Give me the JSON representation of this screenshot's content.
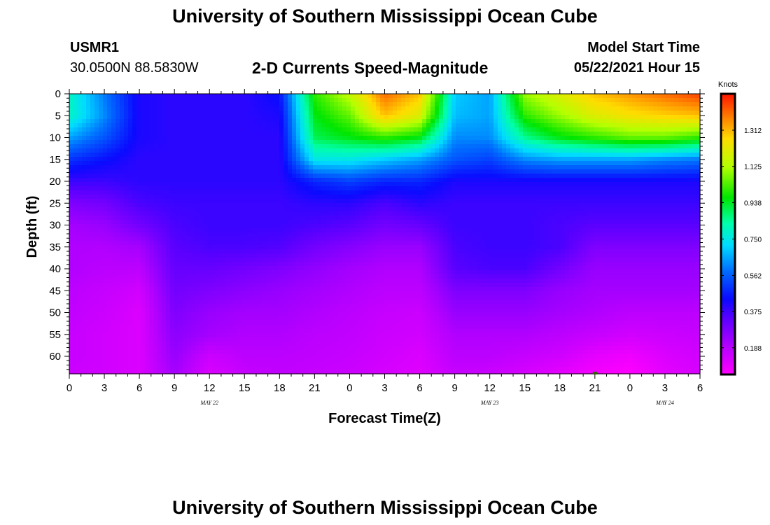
{
  "header": {
    "title": "University of Southern Mississippi Ocean Cube",
    "station_id": "USMR1",
    "station_coords": "30.0500N  88.5830W",
    "plot_title": "2-D Currents Speed-Magnitude",
    "model_start_label": "Model Start Time",
    "model_start_value": "05/22/2021 Hour 15"
  },
  "footer": {
    "title": "University of Southern Mississippi Ocean Cube"
  },
  "chart_data": {
    "type": "heatmap",
    "xlabel": "Forecast Time(Z)",
    "ylabel": "Depth (ft)",
    "x_tick_labels": [
      "0",
      "3",
      "6",
      "9",
      "12",
      "15",
      "18",
      "21",
      "0",
      "3",
      "6",
      "9",
      "12",
      "15",
      "18",
      "21",
      "0",
      "3",
      "6"
    ],
    "x_date_labels": [
      {
        "label": "MAY 22",
        "tick_index": 4
      },
      {
        "label": "MAY 23",
        "tick_index": 12
      },
      {
        "label": "MAY 24",
        "tick_index": 17
      }
    ],
    "y_tick_labels": [
      "0",
      "5",
      "10",
      "15",
      "20",
      "25",
      "30",
      "35",
      "40",
      "45",
      "50",
      "55",
      "60"
    ],
    "y_ticks": [
      0,
      5,
      10,
      15,
      20,
      25,
      30,
      35,
      40,
      45,
      50,
      55,
      60
    ],
    "ylim": [
      0,
      64
    ],
    "x_hours_range": [
      0,
      54
    ],
    "colorbar": {
      "unit_label": "Knots",
      "tick_labels": [
        "0.188",
        "0.375",
        "0.562",
        "0.750",
        "0.938",
        "1.125",
        "1.312"
      ],
      "tick_values": [
        0.188,
        0.375,
        0.562,
        0.75,
        0.938,
        1.125,
        1.312
      ],
      "range": [
        0.05,
        1.5
      ]
    },
    "depths_ft": [
      0,
      5,
      10,
      15,
      20,
      25,
      30,
      35,
      40,
      45,
      50,
      55,
      60,
      64
    ],
    "times_h": [
      0,
      3,
      6,
      9,
      12,
      15,
      18,
      21,
      24,
      27,
      30,
      33,
      36,
      39,
      42,
      45,
      48,
      51,
      54
    ],
    "speed_knots": [
      [
        0.8,
        0.6,
        0.42,
        0.4,
        0.4,
        0.4,
        0.45,
        1.0,
        1.15,
        1.4,
        1.3,
        0.7,
        0.65,
        1.1,
        1.2,
        1.3,
        1.35,
        1.4,
        1.45
      ],
      [
        0.8,
        0.62,
        0.42,
        0.4,
        0.4,
        0.4,
        0.42,
        0.95,
        1.05,
        1.3,
        1.2,
        0.68,
        0.65,
        1.0,
        1.1,
        1.2,
        1.25,
        1.28,
        1.3
      ],
      [
        0.65,
        0.55,
        0.42,
        0.4,
        0.4,
        0.4,
        0.4,
        0.9,
        0.95,
        1.0,
        0.95,
        0.62,
        0.62,
        0.85,
        0.95,
        1.0,
        1.05,
        1.05,
        1.0
      ],
      [
        0.5,
        0.45,
        0.4,
        0.4,
        0.4,
        0.4,
        0.4,
        0.75,
        0.75,
        0.7,
        0.65,
        0.55,
        0.52,
        0.62,
        0.65,
        0.65,
        0.65,
        0.62,
        0.6
      ],
      [
        0.38,
        0.38,
        0.4,
        0.4,
        0.4,
        0.4,
        0.4,
        0.48,
        0.52,
        0.48,
        0.48,
        0.42,
        0.42,
        0.42,
        0.42,
        0.42,
        0.42,
        0.42,
        0.42
      ],
      [
        0.28,
        0.3,
        0.36,
        0.38,
        0.38,
        0.38,
        0.38,
        0.4,
        0.4,
        0.36,
        0.4,
        0.38,
        0.38,
        0.38,
        0.38,
        0.38,
        0.38,
        0.38,
        0.38
      ],
      [
        0.22,
        0.24,
        0.3,
        0.36,
        0.38,
        0.38,
        0.38,
        0.36,
        0.34,
        0.3,
        0.32,
        0.38,
        0.38,
        0.38,
        0.36,
        0.34,
        0.34,
        0.34,
        0.34
      ],
      [
        0.2,
        0.2,
        0.22,
        0.34,
        0.36,
        0.36,
        0.35,
        0.3,
        0.27,
        0.24,
        0.24,
        0.36,
        0.38,
        0.38,
        0.36,
        0.28,
        0.28,
        0.28,
        0.28
      ],
      [
        0.2,
        0.18,
        0.18,
        0.32,
        0.32,
        0.3,
        0.28,
        0.25,
        0.22,
        0.2,
        0.2,
        0.34,
        0.36,
        0.36,
        0.3,
        0.24,
        0.24,
        0.24,
        0.24
      ],
      [
        0.18,
        0.16,
        0.14,
        0.3,
        0.28,
        0.26,
        0.24,
        0.22,
        0.2,
        0.18,
        0.18,
        0.28,
        0.28,
        0.28,
        0.24,
        0.22,
        0.22,
        0.22,
        0.22
      ],
      [
        0.17,
        0.15,
        0.12,
        0.28,
        0.24,
        0.22,
        0.22,
        0.2,
        0.18,
        0.16,
        0.15,
        0.24,
        0.24,
        0.24,
        0.22,
        0.2,
        0.18,
        0.18,
        0.18
      ],
      [
        0.16,
        0.14,
        0.12,
        0.26,
        0.22,
        0.2,
        0.2,
        0.18,
        0.17,
        0.15,
        0.14,
        0.2,
        0.2,
        0.2,
        0.18,
        0.16,
        0.14,
        0.15,
        0.16
      ],
      [
        0.16,
        0.14,
        0.12,
        0.24,
        0.15,
        0.18,
        0.18,
        0.17,
        0.16,
        0.14,
        0.12,
        0.18,
        0.18,
        0.16,
        0.14,
        0.1,
        0.08,
        0.12,
        0.14
      ],
      [
        0.15,
        0.14,
        0.12,
        0.22,
        0.12,
        0.16,
        0.17,
        0.16,
        0.15,
        0.13,
        0.11,
        0.16,
        0.15,
        0.13,
        0.1,
        0.07,
        0.05,
        0.1,
        0.13
      ]
    ],
    "marker": {
      "hour": 45,
      "depth_ft": 64
    }
  }
}
